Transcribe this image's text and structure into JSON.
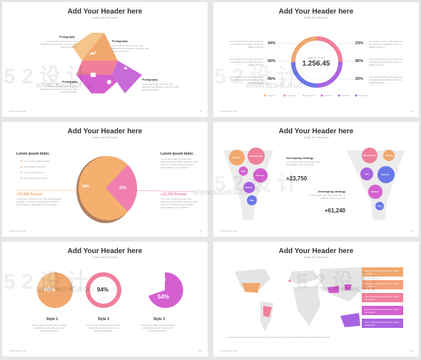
{
  "colors": {
    "orange": "#f0a86e",
    "pink": "#f07f9b",
    "magenta": "#d460cf",
    "purple": "#a963e0",
    "blue": "#6b79e8",
    "light_orange": "#f5c38c"
  },
  "common": {
    "header": "Add Your Header here",
    "subheader": "Subtitle here Placeholder",
    "footer_left": "Presentation Title"
  },
  "slide1": {
    "labels": [
      "Photography",
      "Photography",
      "Photography",
      "Photography"
    ],
    "desc": "Lorem ipsum dolor sit amet, quis adipiscing elit sed diam nonummy nibh euismod tincidunt",
    "page": "09"
  },
  "slide2": {
    "center_label": "Awesome number",
    "center_value": "1.256.45",
    "left": [
      {
        "pct": "34%"
      },
      {
        "pct": "56%"
      },
      {
        "pct": "45%"
      }
    ],
    "right": [
      {
        "pct": "23%"
      },
      {
        "pct": "85%"
      },
      {
        "pct": "20%"
      }
    ],
    "desc": "Lorem ipsum dolor in this awesome text adipiscent excellent nonummy sagittis euismod",
    "legend": [
      "content 1",
      "content 2",
      "content 3",
      "content 4",
      "content 5",
      "content 6"
    ],
    "page": "10"
  },
  "slide3": {
    "heading_left": "Lorem ipsum dolor.",
    "heading_right": "Lorem ipsum dolor.",
    "bullets": [
      "Lorem ipsum dolor sit amet",
      "elit sed diam nonummy",
      "ut wisi enim ad minim",
      "quis nostrud exerci tation"
    ],
    "pie_left": "68%",
    "pie_right": "32%",
    "person_left": "+32,490 Person",
    "person_right": "+12,754 Person",
    "desc": "Lorem ipsum dolor sit amet, quis adipiscing elit sed diam nonummy nibh euismod tincidunt ut laoreet dolore magna aliquam erat volutpat",
    "page": "11"
  },
  "slide4": {
    "strategy1_title": "Developing strategy",
    "strategy1_value": "+23,750",
    "strategy2_title": "Developing strategy",
    "strategy2_value": "+61,240",
    "bubbles_left": [
      "Service",
      "Management",
      "Idea",
      "Concept",
      "Tutorial",
      "Tips"
    ],
    "bubbles_right": [
      "Management",
      "Service",
      "Idea",
      "Tutorial",
      "Method",
      "Tips"
    ],
    "desc": "Lorem ipsum dolor at sit amet dolor at vestibulum idea to success",
    "page": "12"
  },
  "slide5": {
    "values": [
      "60%",
      "94%",
      "54%"
    ],
    "styles": [
      "Style 1",
      "Style 2",
      "Style 3"
    ],
    "desc": "Lorem ipsum dolor sit amet is simply placeholder text for the print and typesetting industry",
    "page": "108"
  },
  "slide6": {
    "boxes": [
      "Lorem ipsum condimentum in mattis elementum",
      "Lorem ipsum condimentum in mattis elementum",
      "Lorem ipsum condimentum in mattis elementum",
      "Lorem ipsum condimentum in mattis elementum",
      "Lorem ipsum condimentum in mattis elementum"
    ],
    "desc": "Lorem ipsum condimentum amet dolor sit id dolor nonummy nibh euismod tincidunt ut laoreet dolore magna",
    "page": "107"
  },
  "watermark": "WWW.52SHEJI.CC"
}
